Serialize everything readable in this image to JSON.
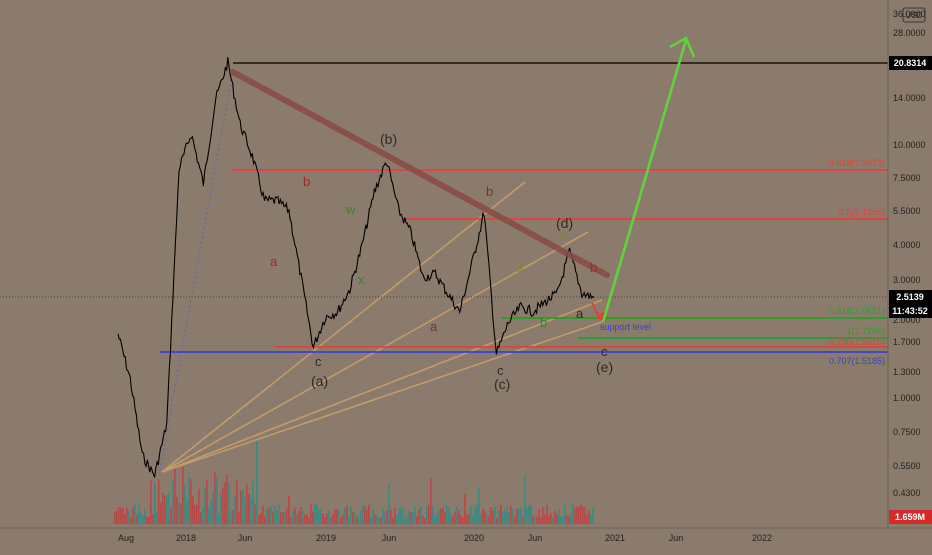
{
  "chart_data": {
    "type": "line",
    "title": "",
    "currency": "USD",
    "scale": "log",
    "grid": false,
    "x_ticks": [
      "Aug",
      "2018",
      "Jun",
      "2019",
      "Jun",
      "2020",
      "Jun",
      "2021",
      "Jun",
      "2022"
    ],
    "y_ticks": [
      "36.0000",
      "28.0000",
      "20.8314",
      "14.0000",
      "10.0000",
      "7.5000",
      "5.5000",
      "4.0000",
      "3.0000",
      "2.5139",
      "2.0000",
      "1.7000",
      "1.3000",
      "1.0000",
      "0.7500",
      "0.5500",
      "0.4300"
    ],
    "current_price": "2.5139",
    "countdown": "11:43:52",
    "volume_label": "1.659M",
    "ath_price": "20.8314",
    "series": [
      {
        "x": [
          "2017-08",
          "2017-09",
          "2017-10",
          "2017-11",
          "2017-12",
          "2018-01",
          "2018-02",
          "2018-03",
          "2018-04",
          "2018-05",
          "2018-06",
          "2018-07",
          "2018-08",
          "2018-09",
          "2018-10",
          "2018-11",
          "2018-12",
          "2019-01",
          "2019-02",
          "2019-03",
          "2019-04",
          "2019-05",
          "2019-06",
          "2019-07",
          "2019-08",
          "2019-09",
          "2019-10",
          "2019-11",
          "2019-12",
          "2020-01",
          "2020-02",
          "2020-03",
          "2020-04",
          "2020-05",
          "2020-06",
          "2020-07",
          "2020-08",
          "2020-09",
          "2020-10",
          "2020-11"
        ],
        "y": [
          1.8,
          1.2,
          0.6,
          0.5,
          0.8,
          8.0,
          11.0,
          7.0,
          15.0,
          21.0,
          12.0,
          9.0,
          6.0,
          6.0,
          5.5,
          3.0,
          1.6,
          2.1,
          2.2,
          2.7,
          4.0,
          6.5,
          8.6,
          5.5,
          4.5,
          3.0,
          3.1,
          2.6,
          2.2,
          3.4,
          5.4,
          1.5,
          2.0,
          2.3,
          2.2,
          2.4,
          2.6,
          3.8,
          2.6,
          2.5
        ]
      }
    ],
    "price_levels": [
      {
        "label": "0.618(7.9073)"
      },
      {
        "label": "0.5(5.1256)"
      },
      {
        "label": "0.818(2.0651)"
      },
      {
        "label": "1(1.7266)"
      },
      {
        "label": "0.786(1.5616)"
      },
      {
        "label": "0.707(1.5185)"
      }
    ],
    "wave_labels": [
      "(b)",
      "(a)",
      "(c)",
      "(d)",
      "(e)",
      "b",
      "a",
      "w",
      "x",
      "b",
      "a",
      "c",
      "c",
      "a",
      "b",
      "c",
      "b",
      "a",
      "c"
    ],
    "annotations": [
      "support level"
    ],
    "colors": {
      "background": "#8b7b6c",
      "candles": "#000000",
      "fib_red": "#e0413a",
      "support_green": "#2e9d2e",
      "fib_blue": "#3b3fd6",
      "trendline": "#8a4a45",
      "forecast": "#5fd43a",
      "fan_lines": "#d6a66a",
      "volume_up": "#2a8a86",
      "volume_down": "#c23a3a",
      "price_badge": "#000000",
      "volume_badge": "#d62a2a"
    }
  }
}
